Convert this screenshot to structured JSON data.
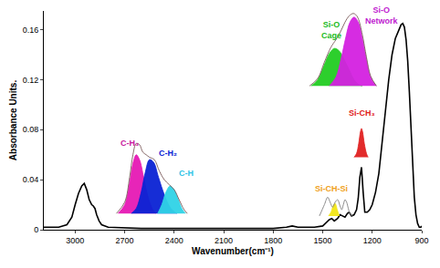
{
  "chart_data": {
    "type": "line",
    "x_label": "Wavenumber(cm⁻¹)",
    "y_label": "Absorbance Units.",
    "xlim": [
      3190,
      900
    ],
    "xticks": [
      3000,
      2700,
      2400,
      2100,
      1800,
      1500,
      1200,
      900
    ],
    "ylim": [
      0,
      0.175
    ],
    "yticks": [
      0,
      0.04,
      0.08,
      0.12,
      0.16
    ],
    "grid": false,
    "series": [
      {
        "type": "line",
        "color": "#000000",
        "x": [
          3190,
          3100,
          3050,
          3020,
          3000,
          2980,
          2960,
          2945,
          2930,
          2915,
          2900,
          2890,
          2880,
          2870,
          2855,
          2840,
          2800,
          2600,
          2200,
          1800,
          1720,
          1685,
          1650,
          1550,
          1500,
          1475,
          1460,
          1445,
          1430,
          1410,
          1395,
          1380,
          1365,
          1350,
          1340,
          1325,
          1310,
          1295,
          1285,
          1275,
          1265,
          1255,
          1245,
          1230,
          1215,
          1200,
          1180,
          1160,
          1140,
          1120,
          1100,
          1080,
          1060,
          1040,
          1025,
          1015,
          1005,
          995,
          985,
          975,
          965,
          955,
          945,
          935,
          925,
          915,
          905,
          900
        ],
        "values": [
          0.002,
          0.002,
          0.004,
          0.01,
          0.02,
          0.029,
          0.035,
          0.037,
          0.032,
          0.024,
          0.02,
          0.019,
          0.017,
          0.012,
          0.007,
          0.004,
          0.002,
          0.001,
          0.001,
          0.001,
          0.002,
          0.003,
          0.002,
          0.002,
          0.003,
          0.006,
          0.008,
          0.009,
          0.007,
          0.009,
          0.012,
          0.011,
          0.01,
          0.013,
          0.014,
          0.011,
          0.012,
          0.016,
          0.025,
          0.042,
          0.05,
          0.03,
          0.014,
          0.014,
          0.016,
          0.02,
          0.03,
          0.045,
          0.068,
          0.095,
          0.12,
          0.14,
          0.153,
          0.16,
          0.164,
          0.165,
          0.162,
          0.152,
          0.135,
          0.11,
          0.08,
          0.05,
          0.026,
          0.012,
          0.005,
          0.002,
          0.002,
          0.003
        ]
      },
      {
        "type": "area",
        "color": "#e619b4",
        "x": [
          2740,
          2700,
          2670,
          2650,
          2630,
          2610,
          2585,
          2560,
          2530,
          2510
        ],
        "values": [
          0.013,
          0.02,
          0.038,
          0.053,
          0.06,
          0.056,
          0.042,
          0.027,
          0.016,
          0.013
        ]
      },
      {
        "type": "area",
        "color": "#0a22d4",
        "x": [
          2660,
          2630,
          2600,
          2575,
          2550,
          2525,
          2495,
          2460,
          2420,
          2385
        ],
        "values": [
          0.013,
          0.017,
          0.03,
          0.046,
          0.056,
          0.054,
          0.042,
          0.028,
          0.017,
          0.013
        ]
      },
      {
        "type": "area",
        "color": "#2fd3e6",
        "x": [
          2500,
          2475,
          2450,
          2425,
          2400,
          2375,
          2350,
          2330
        ],
        "values": [
          0.013,
          0.02,
          0.03,
          0.035,
          0.032,
          0.024,
          0.016,
          0.013
        ]
      },
      {
        "type": "line",
        "color": "#7a5a5a",
        "x": [
          2750,
          2700,
          2670,
          2650,
          2630,
          2610,
          2590,
          2570,
          2550,
          2520,
          2490,
          2460,
          2430,
          2400,
          2370,
          2340,
          2320
        ],
        "values": [
          0.013,
          0.022,
          0.042,
          0.06,
          0.069,
          0.068,
          0.062,
          0.06,
          0.058,
          0.056,
          0.047,
          0.04,
          0.036,
          0.032,
          0.024,
          0.016,
          0.013
        ]
      },
      {
        "type": "area",
        "color": "#22cc22",
        "x": [
          1570,
          1530,
          1490,
          1460,
          1430,
          1400,
          1370,
          1340,
          1310,
          1280,
          1260
        ],
        "values": [
          0.115,
          0.12,
          0.132,
          0.141,
          0.145,
          0.143,
          0.136,
          0.128,
          0.12,
          0.116,
          0.115
        ]
      },
      {
        "type": "area",
        "color": "#d421e0",
        "x": [
          1460,
          1420,
          1390,
          1360,
          1335,
          1310,
          1285,
          1260,
          1235,
          1210,
          1175
        ],
        "values": [
          0.115,
          0.122,
          0.136,
          0.154,
          0.166,
          0.17,
          0.166,
          0.153,
          0.136,
          0.122,
          0.115
        ]
      },
      {
        "type": "line",
        "color": "#7a5a5a",
        "x": [
          1580,
          1530,
          1490,
          1450,
          1420,
          1390,
          1365,
          1340,
          1315,
          1300,
          1285,
          1260,
          1235,
          1210,
          1175
        ],
        "values": [
          0.115,
          0.121,
          0.134,
          0.146,
          0.152,
          0.159,
          0.166,
          0.171,
          0.173,
          0.172,
          0.169,
          0.156,
          0.138,
          0.123,
          0.115
        ]
      },
      {
        "type": "area",
        "color": "#e02020",
        "x": [
          1310,
          1295,
          1282,
          1272,
          1265,
          1258,
          1248,
          1235,
          1225
        ],
        "values": [
          0.058,
          0.061,
          0.069,
          0.078,
          0.081,
          0.078,
          0.069,
          0.061,
          0.058
        ]
      },
      {
        "type": "area",
        "color": "#f2e616",
        "x": [
          1465,
          1450,
          1437,
          1425,
          1412,
          1400
        ],
        "values": [
          0.011,
          0.014,
          0.019,
          0.021,
          0.016,
          0.011
        ]
      },
      {
        "type": "line",
        "color": "#808080",
        "x": [
          1520,
          1490,
          1470,
          1455,
          1440,
          1425,
          1410,
          1395,
          1385,
          1375,
          1365,
          1355,
          1345,
          1335,
          1320
        ],
        "values": [
          0.011,
          0.02,
          0.026,
          0.022,
          0.018,
          0.022,
          0.024,
          0.019,
          0.016,
          0.02,
          0.024,
          0.022,
          0.017,
          0.013,
          0.011
        ]
      }
    ],
    "annotations": [
      {
        "text": "C-H₃",
        "x": 2670,
        "y": 0.069,
        "color": "#c8169e"
      },
      {
        "text": "C-H₂",
        "x": 2440,
        "y": 0.061,
        "color": "#0a22d4"
      },
      {
        "text": "C-H",
        "x": 2325,
        "y": 0.045,
        "color": "#2fc3e6"
      },
      {
        "text": "Si-O\nCage",
        "x": 1445,
        "y": 0.16,
        "color": "#22bb22"
      },
      {
        "text": "Si-O\nNetwork",
        "x": 1140,
        "y": 0.171,
        "color": "#c021d0"
      },
      {
        "text": "Si-CH₃",
        "x": 1265,
        "y": 0.093,
        "color": "#e02020"
      },
      {
        "text": "Si-CH-Si",
        "x": 1445,
        "y": 0.033,
        "color": "#f0a020"
      }
    ]
  }
}
